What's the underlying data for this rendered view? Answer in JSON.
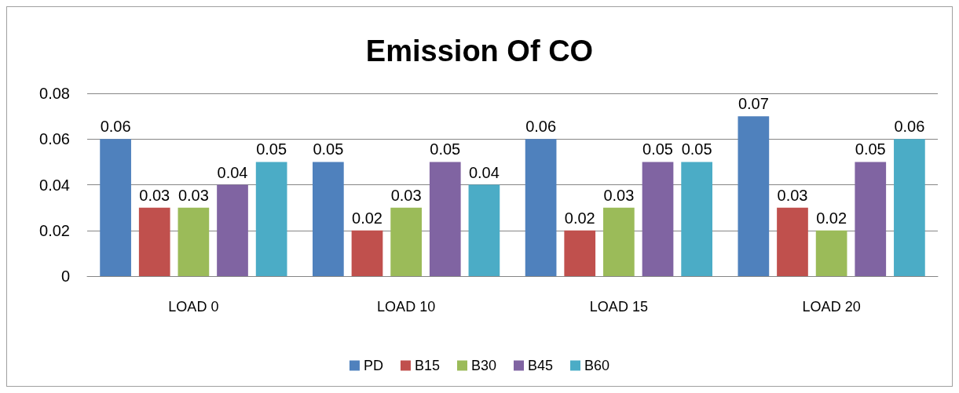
{
  "chart_data": {
    "type": "bar",
    "title": "Emission Of CO",
    "categories": [
      "LOAD 0",
      "LOAD 10",
      "LOAD 15",
      "LOAD 20"
    ],
    "series": [
      {
        "name": "PD",
        "color": "#4f81bd",
        "values": [
          0.06,
          0.05,
          0.06,
          0.07
        ]
      },
      {
        "name": "B15",
        "color": "#c0504d",
        "values": [
          0.03,
          0.02,
          0.02,
          0.03
        ]
      },
      {
        "name": "B30",
        "color": "#9bbb59",
        "values": [
          0.03,
          0.03,
          0.03,
          0.02
        ]
      },
      {
        "name": "B45",
        "color": "#8064a2",
        "values": [
          0.04,
          0.05,
          0.05,
          0.05
        ]
      },
      {
        "name": "B60",
        "color": "#4bacc6",
        "values": [
          0.05,
          0.04,
          0.05,
          0.06
        ]
      }
    ],
    "ylim": [
      0,
      0.08
    ],
    "yticks": [
      0,
      0.02,
      0.04,
      0.06,
      0.08
    ],
    "grid": "y",
    "legend": "bottom",
    "data_labels": true
  }
}
